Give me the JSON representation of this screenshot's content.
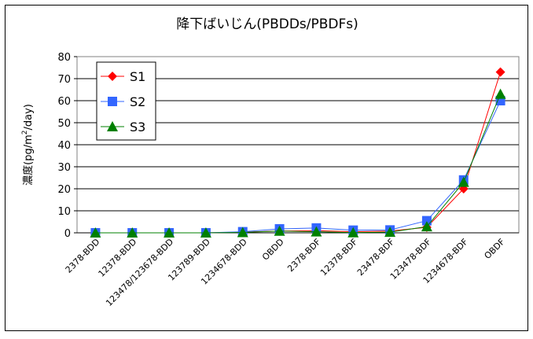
{
  "chart_data": {
    "type": "line",
    "title": "降下ばいじん(PBDDs/PBDFs)",
    "ylabel": "濃度(pg/m2/day)",
    "ylabel_parts": {
      "before": "濃度(pg/m",
      "superscript": "2",
      "after": "/day)"
    },
    "xlabel": "",
    "ylim": [
      0,
      80
    ],
    "yticks": [
      0,
      10,
      20,
      30,
      40,
      50,
      60,
      70,
      80
    ],
    "grid": true,
    "legend_position": "top-left",
    "categories": [
      "2378-BDD",
      "12378-BDD",
      "123478/123678-BDD",
      "123789-BDD",
      "1234678-BDD",
      "OBDD",
      "2378-BDF",
      "12378-BDF",
      "23478-BDF",
      "123478-BDF",
      "1234678-BDF",
      "OBDF"
    ],
    "series": [
      {
        "name": "S1",
        "color": "#ff0000",
        "marker": "diamond",
        "values": [
          0,
          0,
          0,
          0,
          0.3,
          0.8,
          1.0,
          0.5,
          0.8,
          2.5,
          20,
          73
        ]
      },
      {
        "name": "S2",
        "color": "#3366ff",
        "marker": "square",
        "values": [
          0,
          0,
          0,
          0,
          0.5,
          1.8,
          2.2,
          1.2,
          1.3,
          5.5,
          24,
          60
        ]
      },
      {
        "name": "S3",
        "color": "#008000",
        "marker": "triangle",
        "values": [
          0,
          0,
          0,
          0,
          0.2,
          0.8,
          0.5,
          0.1,
          0.3,
          2.8,
          23,
          63
        ]
      }
    ]
  }
}
